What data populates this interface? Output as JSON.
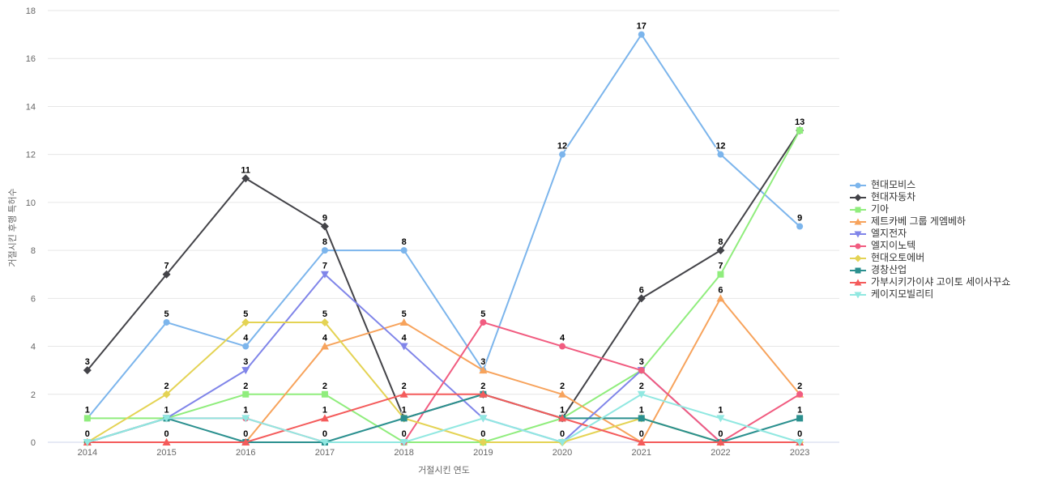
{
  "chart_data": {
    "type": "line",
    "title": "",
    "xlabel": "거절시킨 연도",
    "ylabel": "거절시킨 후행 특허수",
    "categories": [
      "2014",
      "2015",
      "2016",
      "2017",
      "2018",
      "2019",
      "2020",
      "2021",
      "2022",
      "2023"
    ],
    "ylim": [
      0,
      18
    ],
    "ytick_step": 2,
    "grid": true,
    "legend_position": "right",
    "grid_color": "#e6e6e6",
    "axis_line_color": "#ccd6eb",
    "tick_label_color": "#666666",
    "data_label_color": "#000000",
    "legend_text_color": "#333333",
    "series": [
      {
        "name": "현대모비스",
        "color": "#7cb5ec",
        "marker": "circle",
        "values": [
          1,
          5,
          4,
          8,
          8,
          3,
          12,
          17,
          12,
          9
        ]
      },
      {
        "name": "현대자동차",
        "color": "#434348",
        "marker": "diamond",
        "values": [
          3,
          7,
          11,
          9,
          1,
          2,
          1,
          6,
          8,
          13
        ]
      },
      {
        "name": "기아",
        "color": "#90ed7d",
        "marker": "square",
        "values": [
          1,
          1,
          2,
          2,
          0,
          0,
          1,
          3,
          7,
          13
        ]
      },
      {
        "name": "제트카베 그룹 게엠베하",
        "color": "#f7a35c",
        "marker": "triangle",
        "values": [
          0,
          0,
          0,
          4,
          5,
          3,
          2,
          0,
          6,
          2
        ]
      },
      {
        "name": "엘지전자",
        "color": "#8085e9",
        "marker": "triangle-down",
        "values": [
          0,
          1,
          3,
          7,
          4,
          1,
          0,
          3,
          0,
          0
        ]
      },
      {
        "name": "엘지이노텍",
        "color": "#f15c80",
        "marker": "circle",
        "values": [
          0,
          1,
          1,
          0,
          0,
          5,
          4,
          3,
          0,
          2
        ]
      },
      {
        "name": "현대오토에버",
        "color": "#e4d354",
        "marker": "diamond",
        "values": [
          0,
          2,
          5,
          5,
          1,
          0,
          0,
          1,
          0,
          0
        ]
      },
      {
        "name": "경창산업",
        "color": "#2b908f",
        "marker": "square",
        "values": [
          0,
          1,
          0,
          0,
          1,
          2,
          1,
          1,
          0,
          1
        ]
      },
      {
        "name": "가부시키가이샤 고이토 세이사꾸쇼",
        "color": "#f45b5b",
        "marker": "triangle",
        "values": [
          0,
          0,
          0,
          1,
          2,
          2,
          1,
          0,
          0,
          0
        ]
      },
      {
        "name": "케이지모빌리티",
        "color": "#91e8e1",
        "marker": "triangle-down",
        "values": [
          0,
          1,
          1,
          0,
          0,
          1,
          0,
          2,
          1,
          0
        ]
      }
    ]
  }
}
